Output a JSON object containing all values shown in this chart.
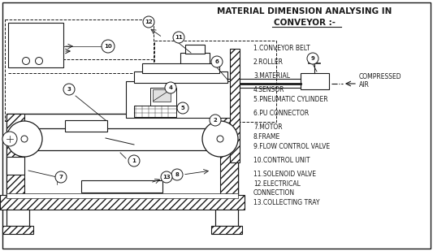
{
  "title_line1": "MATERIAL DIMENSION ANALYSING IN",
  "title_line2": "CONVEYOR :-",
  "legend": [
    "1.CONVEYOR BELT",
    "2.ROLLER",
    "3.MATERIAL",
    "4.SENSOR",
    "5.PNEUMATIC CYLINDER",
    "6.PU CONNECTOR",
    "7.MOTOR",
    "8.FRAME",
    "9.FLOW CONTROL VALVE",
    "10.CONTROL UNIT",
    "11.SOLENOID VALVE",
    "12.ELECTRICAL",
    "CONNECTION",
    "13.COLLECTING TRAY"
  ],
  "compressed_air_label1": "COMPRESSED",
  "compressed_air_label2": "AIR",
  "line_color": "#1a1a1a"
}
